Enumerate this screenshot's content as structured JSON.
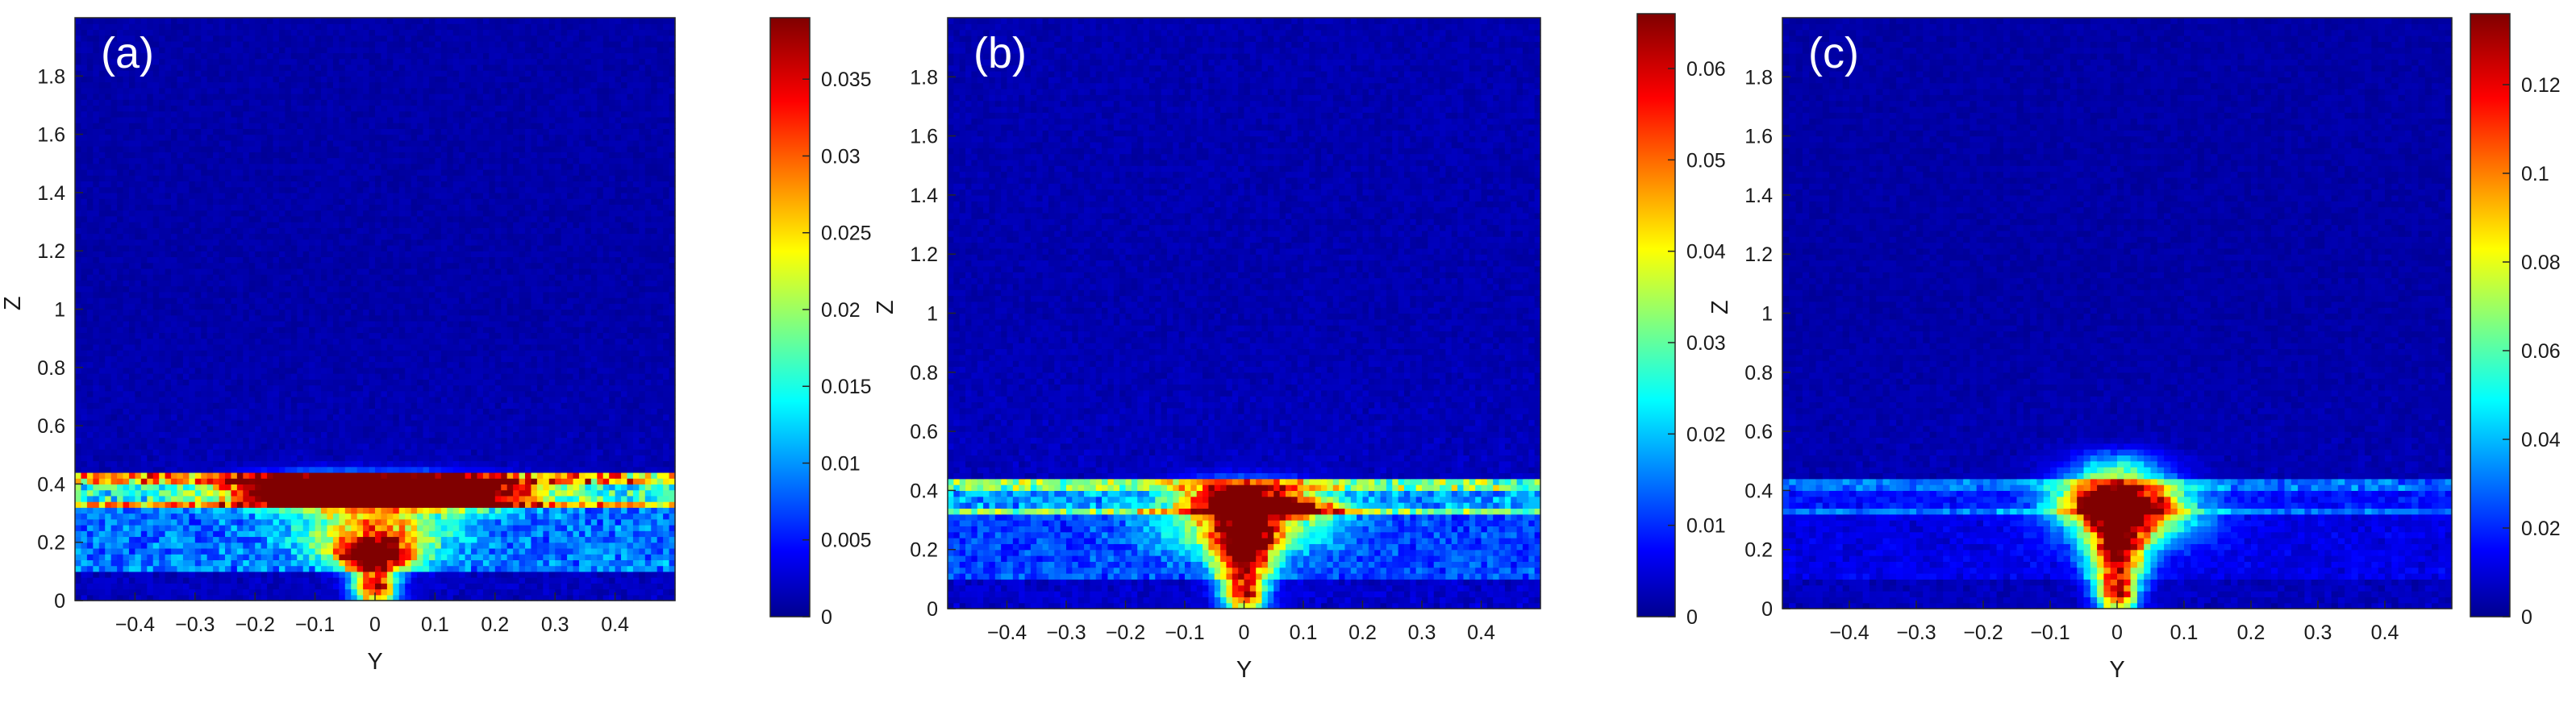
{
  "chart_data": [
    {
      "type": "heatmap",
      "panel_label": "(a)",
      "xlabel": "Y",
      "ylabel": "Z",
      "xlim": [
        -0.5,
        0.5
      ],
      "ylim": [
        0,
        2
      ],
      "xticks": [
        -0.4,
        -0.3,
        -0.2,
        -0.1,
        0,
        0.1,
        0.2,
        0.3,
        0.4
      ],
      "xtick_labels": [
        "−0.4",
        "−0.3",
        "−0.2",
        "−0.1",
        "0",
        "0.1",
        "0.2",
        "0.3",
        "0.4"
      ],
      "yticks": [
        0,
        0.2,
        0.4,
        0.6,
        0.8,
        1,
        1.2,
        1.4,
        1.6,
        1.8
      ],
      "ytick_labels": [
        "0",
        "0.2",
        "0.4",
        "0.6",
        "0.8",
        "1",
        "1.2",
        "1.4",
        "1.6",
        "1.8"
      ],
      "colorbar": {
        "min": 0,
        "max": 0.039,
        "colormap": "jet",
        "ticks": [
          0,
          0.005,
          0.01,
          0.015,
          0.02,
          0.025,
          0.03,
          0.035
        ],
        "tick_labels": [
          "0",
          "0.005",
          "0.01",
          "0.015",
          "0.02",
          "0.025",
          "0.03",
          "0.035"
        ]
      },
      "features": {
        "band": {
          "z_from": 0.32,
          "z_to": 0.43,
          "y_from": -0.5,
          "y_to": 0.5,
          "value": 0.013
        },
        "band_edges": {
          "lower_z": 0.33,
          "upper_z": 0.42,
          "value": 0.018
        },
        "hotspots": [
          {
            "y": 0.0,
            "z": 0.375,
            "value": 0.039,
            "spread_y": 0.14,
            "spread_z": 0.035
          },
          {
            "y": -0.1,
            "z": 0.38,
            "value": 0.031,
            "spread_y": 0.08,
            "spread_z": 0.03
          },
          {
            "y": 0.12,
            "z": 0.37,
            "value": 0.029,
            "spread_y": 0.09,
            "spread_z": 0.03
          },
          {
            "y": 0.0,
            "z": 0.16,
            "value": 0.039,
            "spread_y": 0.045,
            "spread_z": 0.035
          },
          {
            "y": 0.0,
            "z": 0.05,
            "value": 0.037,
            "spread_y": 0.025,
            "spread_z": 0.05
          },
          {
            "y": 0.0,
            "z": 0.25,
            "value": 0.02,
            "spread_y": 0.08,
            "spread_z": 0.06
          }
        ],
        "lower_layer": {
          "z_from": 0.1,
          "z_to": 0.32,
          "value": 0.007
        },
        "background": 0.0015
      }
    },
    {
      "type": "heatmap",
      "panel_label": "(b)",
      "xlabel": "Y",
      "ylabel": "Z",
      "xlim": [
        -0.5,
        0.5
      ],
      "ylim": [
        0,
        2
      ],
      "xticks": [
        -0.4,
        -0.3,
        -0.2,
        -0.1,
        0,
        0.1,
        0.2,
        0.3,
        0.4
      ],
      "xtick_labels": [
        "−0.4",
        "−0.3",
        "−0.2",
        "−0.1",
        "0",
        "0.1",
        "0.2",
        "0.3",
        "0.4"
      ],
      "yticks": [
        0,
        0.2,
        0.4,
        0.6,
        0.8,
        1,
        1.2,
        1.4,
        1.6,
        1.8
      ],
      "ytick_labels": [
        "0",
        "0.2",
        "0.4",
        "0.6",
        "0.8",
        "1",
        "1.2",
        "1.4",
        "1.6",
        "1.8"
      ],
      "colorbar": {
        "min": 0,
        "max": 0.066,
        "colormap": "jet",
        "ticks": [
          0,
          0.01,
          0.02,
          0.03,
          0.04,
          0.05,
          0.06
        ],
        "tick_labels": [
          "0",
          "0.01",
          "0.02",
          "0.03",
          "0.04",
          "0.05",
          "0.06"
        ]
      },
      "features": {
        "band": {
          "z_from": 0.32,
          "z_to": 0.43,
          "y_from": -0.5,
          "y_to": 0.5,
          "value": 0.014
        },
        "band_edges": {
          "lower_z": 0.33,
          "upper_z": 0.42,
          "value": 0.022
        },
        "hotspots": [
          {
            "y": 0.0,
            "z": 0.37,
            "value": 0.066,
            "spread_y": 0.07,
            "spread_z": 0.04
          },
          {
            "y": 0.08,
            "z": 0.34,
            "value": 0.04,
            "spread_y": 0.06,
            "spread_z": 0.02
          },
          {
            "y": 0.0,
            "z": 0.2,
            "value": 0.062,
            "spread_y": 0.035,
            "spread_z": 0.07
          },
          {
            "y": 0.0,
            "z": 0.05,
            "value": 0.055,
            "spread_y": 0.025,
            "spread_z": 0.05
          },
          {
            "y": 0.0,
            "z": 0.27,
            "value": 0.035,
            "spread_y": 0.09,
            "spread_z": 0.05
          }
        ],
        "lower_layer": {
          "z_from": 0.1,
          "z_to": 0.32,
          "value": 0.008
        },
        "background": 0.003
      }
    },
    {
      "type": "heatmap",
      "panel_label": "(c)",
      "xlabel": "Y",
      "ylabel": "Z",
      "xlim": [
        -0.5,
        0.5
      ],
      "ylim": [
        0,
        2
      ],
      "xticks": [
        -0.4,
        -0.3,
        -0.2,
        -0.1,
        0,
        0.1,
        0.2,
        0.3,
        0.4
      ],
      "xtick_labels": [
        "−0.4",
        "−0.3",
        "−0.2",
        "−0.1",
        "0",
        "0.1",
        "0.2",
        "0.3",
        "0.4"
      ],
      "yticks": [
        0,
        0.2,
        0.4,
        0.6,
        0.8,
        1,
        1.2,
        1.4,
        1.6,
        1.8
      ],
      "ytick_labels": [
        "0",
        "0.2",
        "0.4",
        "0.6",
        "0.8",
        "1",
        "1.2",
        "1.4",
        "1.6",
        "1.8"
      ],
      "colorbar": {
        "min": 0,
        "max": 0.136,
        "colormap": "jet",
        "ticks": [
          0,
          0.02,
          0.04,
          0.06,
          0.08,
          0.1,
          0.12
        ],
        "tick_labels": [
          "0",
          "0.02",
          "0.04",
          "0.06",
          "0.08",
          "0.1",
          "0.12"
        ]
      },
      "features": {
        "band": {
          "z_from": 0.32,
          "z_to": 0.43,
          "y_from": -0.5,
          "y_to": 0.5,
          "value": 0.012
        },
        "band_edges": {
          "lower_z": 0.33,
          "upper_z": 0.42,
          "value": 0.02
        },
        "hotspots": [
          {
            "y": 0.0,
            "z": 0.37,
            "value": 0.136,
            "spread_y": 0.055,
            "spread_z": 0.05
          },
          {
            "y": 0.0,
            "z": 0.2,
            "value": 0.12,
            "spread_y": 0.03,
            "spread_z": 0.08
          },
          {
            "y": 0.0,
            "z": 0.05,
            "value": 0.11,
            "spread_y": 0.02,
            "spread_z": 0.05
          },
          {
            "y": 0.02,
            "z": 0.3,
            "value": 0.07,
            "spread_y": 0.07,
            "spread_z": 0.06
          },
          {
            "y": 0.0,
            "z": 0.48,
            "value": 0.04,
            "spread_y": 0.05,
            "spread_z": 0.04
          }
        ],
        "lower_layer": {
          "z_from": 0.1,
          "z_to": 0.32,
          "value": 0.006
        },
        "background": 0.005
      }
    }
  ]
}
